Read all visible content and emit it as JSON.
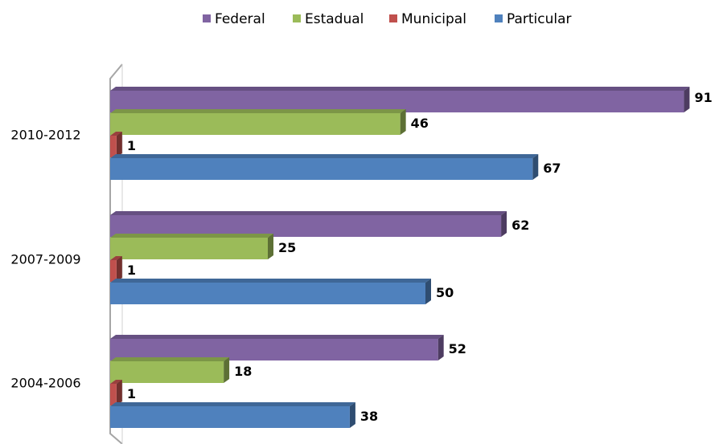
{
  "chart_data": {
    "type": "bar",
    "orientation": "horizontal",
    "categories": [
      "2010-2012",
      "2007-2009",
      "2004-2006"
    ],
    "series": [
      {
        "name": "Federal",
        "color": "#8064a2",
        "values": [
          91,
          62,
          52
        ]
      },
      {
        "name": "Estadual",
        "color": "#9bbb59",
        "values": [
          46,
          25,
          18
        ]
      },
      {
        "name": "Municipal",
        "color": "#c0504d",
        "values": [
          1,
          1,
          1
        ]
      },
      {
        "name": "Particular",
        "color": "#4f81bd",
        "values": [
          67,
          50,
          38
        ]
      }
    ],
    "xlim": [
      0,
      100
    ],
    "legend": "top"
  }
}
